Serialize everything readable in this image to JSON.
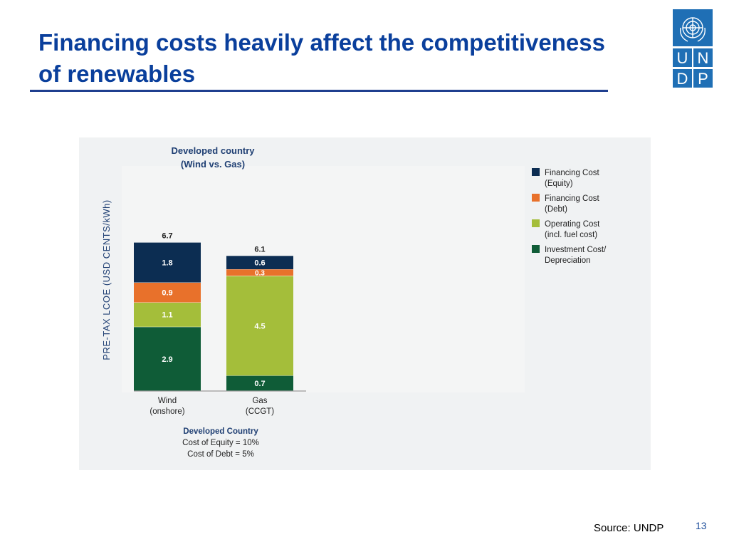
{
  "slide": {
    "title_line1": "Financing costs heavily affect the competitiveness",
    "title_line2": "of renewables",
    "source": "Source: UNDP",
    "page_number": "13",
    "logo_letters": [
      "U",
      "N",
      "D",
      "P"
    ],
    "logo_color": "#1f6fb5",
    "title_color": "#0a3f9c"
  },
  "chart_data": {
    "type": "bar",
    "stacked": true,
    "title_line1": "Developed country",
    "title_line2": "(Wind vs. Gas)",
    "ylabel": "PRE-TAX LCOE (USD CENTS/kWh)",
    "categories": [
      {
        "name": "Wind",
        "sub": "(onshore)"
      },
      {
        "name": "Gas",
        "sub": "(CCGT)"
      }
    ],
    "totals": [
      "6.7",
      "6.1"
    ],
    "series": [
      {
        "name": "Investment Cost/ Depreciation",
        "legend_lines": [
          "Investment Cost/",
          "Depreciation"
        ],
        "color": "#0f5c37",
        "values": [
          2.9,
          0.7
        ]
      },
      {
        "name": "Operating Cost (incl. fuel cost)",
        "legend_lines": [
          "Operating Cost",
          "(incl. fuel cost)"
        ],
        "color": "#a4be3a",
        "values": [
          1.1,
          4.5
        ]
      },
      {
        "name": "Financing Cost (Debt)",
        "legend_lines": [
          "Financing Cost",
          "(Debt)"
        ],
        "color": "#e8712b",
        "values": [
          0.9,
          0.3
        ]
      },
      {
        "name": "Financing Cost (Equity)",
        "legend_lines": [
          "Financing Cost",
          "(Equity)"
        ],
        "color": "#0c2d52",
        "values": [
          1.8,
          0.6
        ]
      }
    ],
    "legend_order": [
      3,
      2,
      1,
      0
    ],
    "legend_position": "right",
    "ylim": [
      0,
      7
    ],
    "grid": false,
    "footnote": {
      "heading": "Developed Country",
      "line1": "Cost of Equity = 10%",
      "line2": "Cost of Debt = 5%"
    }
  }
}
